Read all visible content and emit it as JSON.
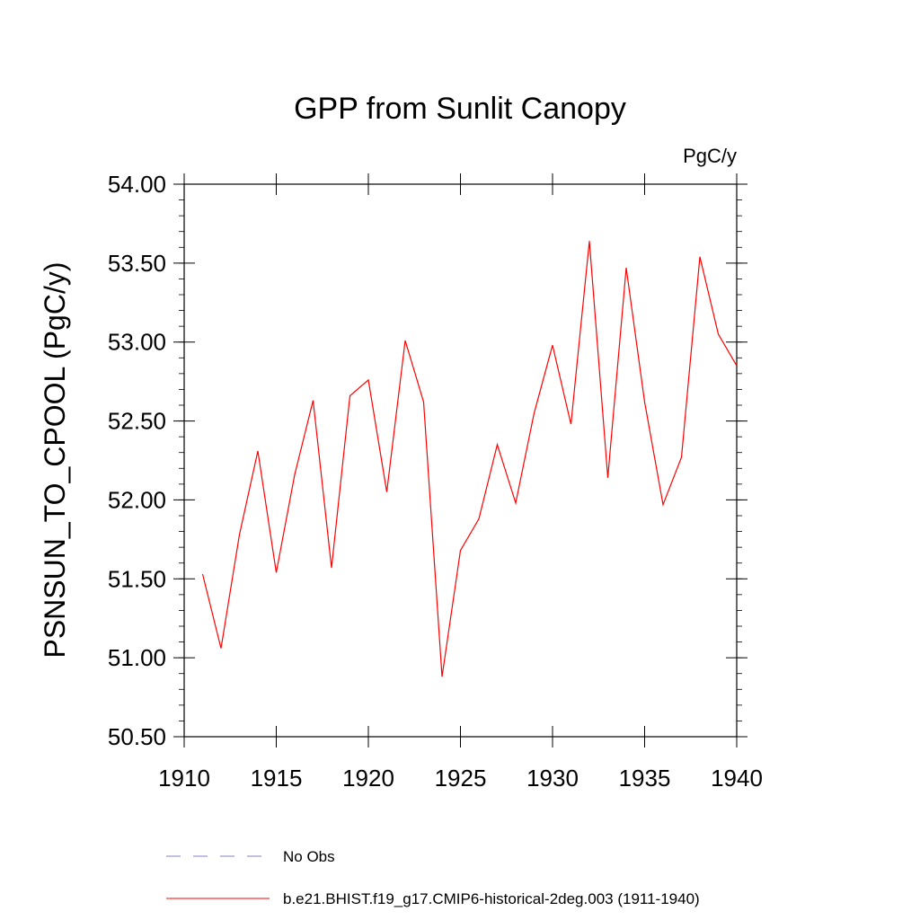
{
  "chart_data": {
    "type": "line",
    "title": "GPP from Sunlit Canopy",
    "units": "PgC/y",
    "xlabel": "",
    "ylabel": "PSNSUN_TO_CPOOL  (PgC/y)",
    "xlim": [
      1910,
      1940
    ],
    "ylim": [
      50.5,
      54.0
    ],
    "x_ticks": [
      1910,
      1915,
      1920,
      1925,
      1930,
      1935,
      1940
    ],
    "x_tick_labels": [
      "1910",
      "1915",
      "1920",
      "1925",
      "1930",
      "1935",
      "1940"
    ],
    "y_ticks": [
      50.5,
      51.0,
      51.5,
      52.0,
      52.5,
      53.0,
      53.5,
      54.0
    ],
    "y_tick_labels": [
      "50.50",
      "51.00",
      "51.50",
      "52.00",
      "52.50",
      "53.00",
      "53.50",
      "54.00"
    ],
    "grid": false,
    "legend_position": "bottom",
    "series": [
      {
        "name": "b.e21.BHIST.f19_g17.CMIP6-historical-2deg.003 (1911-1940)",
        "color": "#ff0000",
        "style": "solid",
        "x": [
          1911,
          1912,
          1913,
          1914,
          1915,
          1916,
          1917,
          1918,
          1919,
          1920,
          1921,
          1922,
          1923,
          1924,
          1925,
          1926,
          1927,
          1928,
          1929,
          1930,
          1931,
          1932,
          1933,
          1934,
          1935,
          1936,
          1937,
          1938,
          1939,
          1940
        ],
        "values": [
          51.53,
          51.06,
          51.78,
          52.31,
          51.54,
          52.16,
          52.63,
          51.57,
          52.66,
          52.76,
          52.05,
          53.01,
          52.62,
          50.88,
          51.68,
          51.88,
          52.35,
          51.98,
          52.55,
          52.98,
          52.48,
          53.64,
          52.14,
          53.47,
          52.62,
          51.97,
          52.27,
          53.54,
          53.05,
          52.85
        ]
      }
    ],
    "legend": [
      {
        "label": "No Obs",
        "color": "#8080c0",
        "style": "dashed"
      },
      {
        "label": "b.e21.BHIST.f19_g17.CMIP6-historical-2deg.003 (1911-1940)",
        "color": "#ff0000",
        "style": "solid"
      }
    ]
  }
}
